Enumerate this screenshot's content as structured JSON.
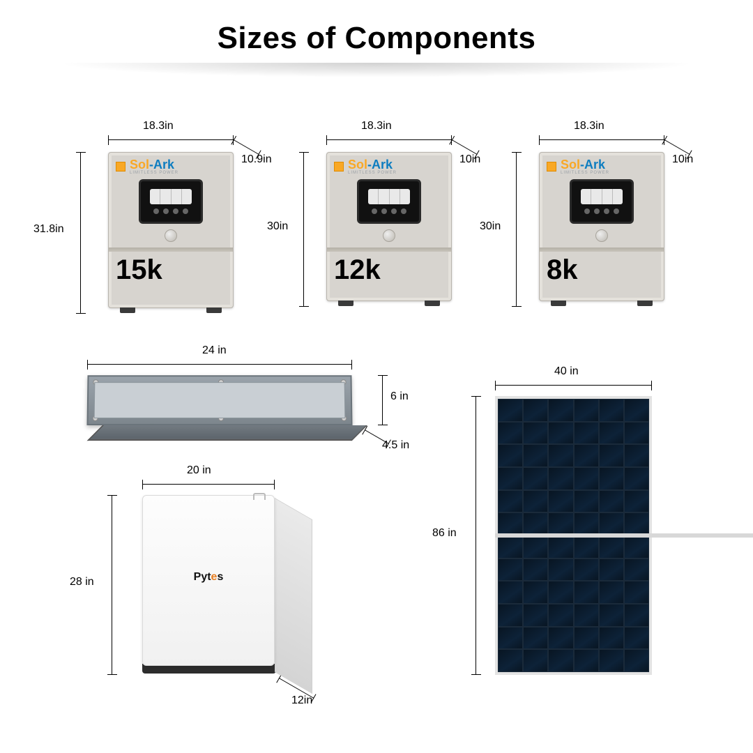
{
  "title": "Sizes of Components",
  "title_fontsize": 44,
  "label_fontsize": 20,
  "background_color": "#ffffff",
  "dim_line_color": "#000000",
  "inverters": [
    {
      "model": "15k",
      "width": "18.3in",
      "height": "31.8in",
      "depth": "10.9in",
      "brand_sol": "Sol",
      "brand_ark": "-Ark",
      "brand_sub": "LIMITLESS POWER"
    },
    {
      "model": "12k",
      "width": "18.3in",
      "height": "30in",
      "depth": "10in",
      "brand_sol": "Sol",
      "brand_ark": "-Ark",
      "brand_sub": "LIMITLESS POWER"
    },
    {
      "model": "8k",
      "width": "18.3in",
      "height": "30in",
      "depth": "10in",
      "brand_sol": "Sol",
      "brand_ark": "-Ark",
      "brand_sub": "LIMITLESS POWER"
    }
  ],
  "combiner": {
    "width": "24 in",
    "height": "6 in",
    "depth": "4.5 in"
  },
  "battery": {
    "width": "20 in",
    "height": "28 in",
    "depth": "12in",
    "brand_p": "Pyt",
    "brand_y": "e",
    "brand_s": "s"
  },
  "panel": {
    "width": "40 in",
    "height": "86 in",
    "cols": 6,
    "rows": 12
  },
  "colors": {
    "inverter_body": "#d7d4cf",
    "inverter_accent": "#f9a825",
    "inverter_brand2": "#0d7dc0",
    "combiner_body": "#8a939a",
    "battery_body": "#f7f7f7",
    "battery_base": "#2d2d2d",
    "panel_cell": "#0a1a2a",
    "panel_frame": "#e3e3e3"
  }
}
